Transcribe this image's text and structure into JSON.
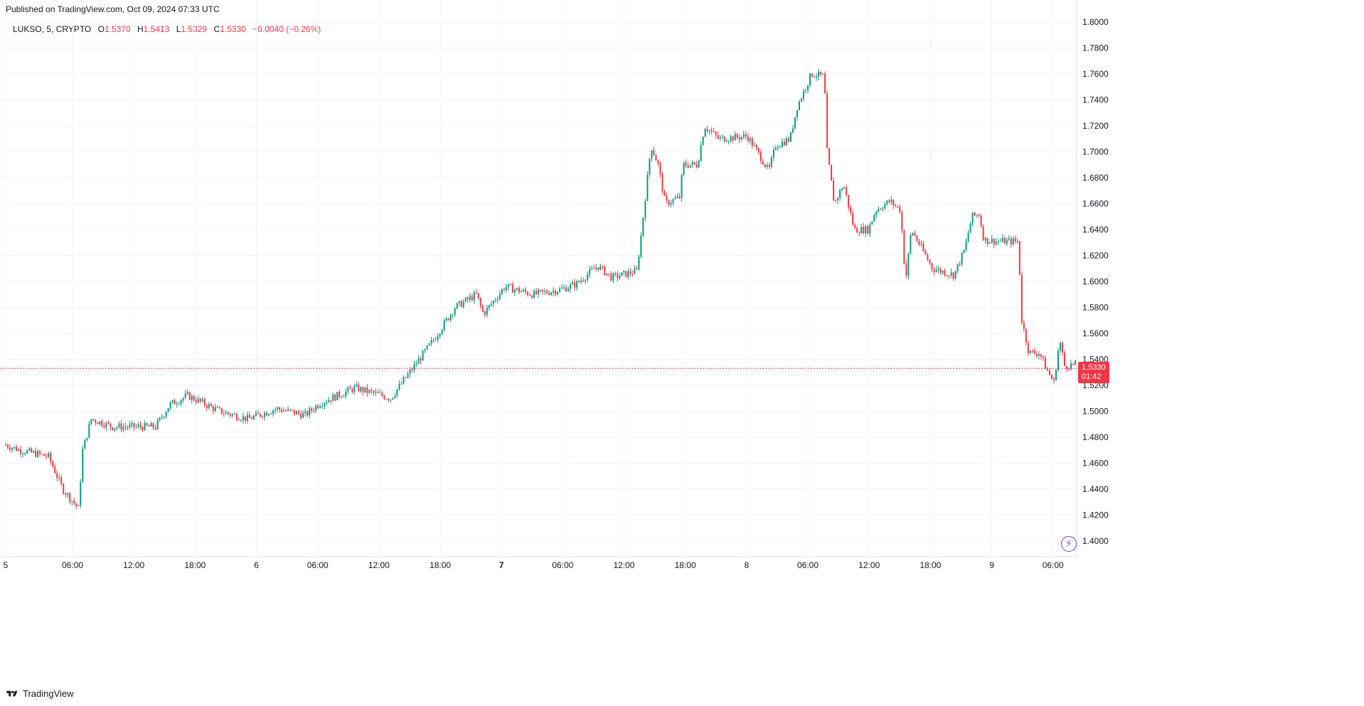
{
  "header": {
    "published": "Published on TradingView.com, Oct 09, 2024 07:33 UTC"
  },
  "legend": {
    "symbol": "LUKSO, 5, CRYPTO",
    "o_label": "O",
    "o_value": "1.5370",
    "h_label": "H",
    "h_value": "1.5413",
    "l_label": "L",
    "l_value": "1.5329",
    "c_label": "C",
    "c_value": "1.5330",
    "change": "−0.0040 (−0.26%)"
  },
  "price_tag": {
    "price": "1.5330",
    "countdown": "01:42"
  },
  "footer": {
    "brand": "TradingView"
  },
  "colors": {
    "up": "#089981",
    "down": "#f23645",
    "grid": "#f0f3fa",
    "axis_text": "#131722",
    "bolt": "#7b3fb6"
  },
  "chart_data": {
    "type": "candlestick",
    "symbol": "LUKSO",
    "interval": "5",
    "ylim": [
      1.39,
      1.805
    ],
    "y_ticks": [
      "1.8000",
      "1.7800",
      "1.7600",
      "1.7400",
      "1.7200",
      "1.7000",
      "1.6800",
      "1.6600",
      "1.6400",
      "1.6200",
      "1.6000",
      "1.5800",
      "1.5600",
      "1.5400",
      "1.5200",
      "1.5000",
      "1.4800",
      "1.4600",
      "1.4400",
      "1.4200",
      "1.4000"
    ],
    "x_ticks": [
      {
        "label": "5",
        "bold": false,
        "pos": 0.0
      },
      {
        "label": "06:00",
        "bold": false,
        "pos": 0.0625
      },
      {
        "label": "12:00",
        "bold": false,
        "pos": 0.1198
      },
      {
        "label": "18:00",
        "bold": false,
        "pos": 0.1771
      },
      {
        "label": "6",
        "bold": false,
        "pos": 0.2344
      },
      {
        "label": "06:00",
        "bold": false,
        "pos": 0.2917
      },
      {
        "label": "12:00",
        "bold": false,
        "pos": 0.349
      },
      {
        "label": "18:00",
        "bold": false,
        "pos": 0.4063
      },
      {
        "label": "7",
        "bold": true,
        "pos": 0.4635
      },
      {
        "label": "06:00",
        "bold": false,
        "pos": 0.5208
      },
      {
        "label": "12:00",
        "bold": false,
        "pos": 0.5781
      },
      {
        "label": "18:00",
        "bold": false,
        "pos": 0.6354
      },
      {
        "label": "8",
        "bold": false,
        "pos": 0.6927
      },
      {
        "label": "06:00",
        "bold": false,
        "pos": 0.75
      },
      {
        "label": "12:00",
        "bold": false,
        "pos": 0.8073
      },
      {
        "label": "18:00",
        "bold": false,
        "pos": 0.8646
      },
      {
        "label": "9",
        "bold": false,
        "pos": 0.9219
      },
      {
        "label": "06:00",
        "bold": false,
        "pos": 0.9792
      }
    ],
    "last_price": 1.533,
    "anchors": [
      [
        0,
        1.474
      ],
      [
        20,
        1.47
      ],
      [
        60,
        1.465
      ],
      [
        80,
        1.44
      ],
      [
        102,
        1.425
      ],
      [
        108,
        1.47
      ],
      [
        120,
        1.494
      ],
      [
        150,
        1.488
      ],
      [
        210,
        1.488
      ],
      [
        230,
        1.505
      ],
      [
        255,
        1.512
      ],
      [
        300,
        1.5
      ],
      [
        340,
        1.494
      ],
      [
        380,
        1.502
      ],
      [
        420,
        1.497
      ],
      [
        440,
        1.506
      ],
      [
        490,
        1.518
      ],
      [
        540,
        1.51
      ],
      [
        560,
        1.525
      ],
      [
        600,
        1.555
      ],
      [
        630,
        1.58
      ],
      [
        660,
        1.59
      ],
      [
        670,
        1.575
      ],
      [
        700,
        1.596
      ],
      [
        740,
        1.59
      ],
      [
        780,
        1.594
      ],
      [
        800,
        1.598
      ],
      [
        830,
        1.612
      ],
      [
        850,
        1.603
      ],
      [
        885,
        1.608
      ],
      [
        890,
        1.63
      ],
      [
        905,
        1.705
      ],
      [
        915,
        1.69
      ],
      [
        925,
        1.66
      ],
      [
        945,
        1.665
      ],
      [
        950,
        1.69
      ],
      [
        970,
        1.69
      ],
      [
        980,
        1.72
      ],
      [
        1000,
        1.71
      ],
      [
        1040,
        1.712
      ],
      [
        1060,
        1.695
      ],
      [
        1070,
        1.685
      ],
      [
        1080,
        1.705
      ],
      [
        1100,
        1.71
      ],
      [
        1110,
        1.735
      ],
      [
        1130,
        1.76
      ],
      [
        1148,
        1.758
      ],
      [
        1152,
        1.7
      ],
      [
        1162,
        1.66
      ],
      [
        1175,
        1.675
      ],
      [
        1190,
        1.64
      ],
      [
        1210,
        1.64
      ],
      [
        1220,
        1.655
      ],
      [
        1240,
        1.662
      ],
      [
        1255,
        1.655
      ],
      [
        1262,
        1.6
      ],
      [
        1270,
        1.64
      ],
      [
        1290,
        1.62
      ],
      [
        1300,
        1.61
      ],
      [
        1330,
        1.605
      ],
      [
        1345,
        1.625
      ],
      [
        1355,
        1.65
      ],
      [
        1365,
        1.652
      ],
      [
        1372,
        1.632
      ],
      [
        1390,
        1.631
      ],
      [
        1420,
        1.631
      ],
      [
        1425,
        1.57
      ],
      [
        1435,
        1.545
      ],
      [
        1450,
        1.545
      ],
      [
        1460,
        1.532
      ],
      [
        1470,
        1.522
      ],
      [
        1478,
        1.555
      ],
      [
        1485,
        1.535
      ],
      [
        1500,
        1.536
      ]
    ]
  }
}
